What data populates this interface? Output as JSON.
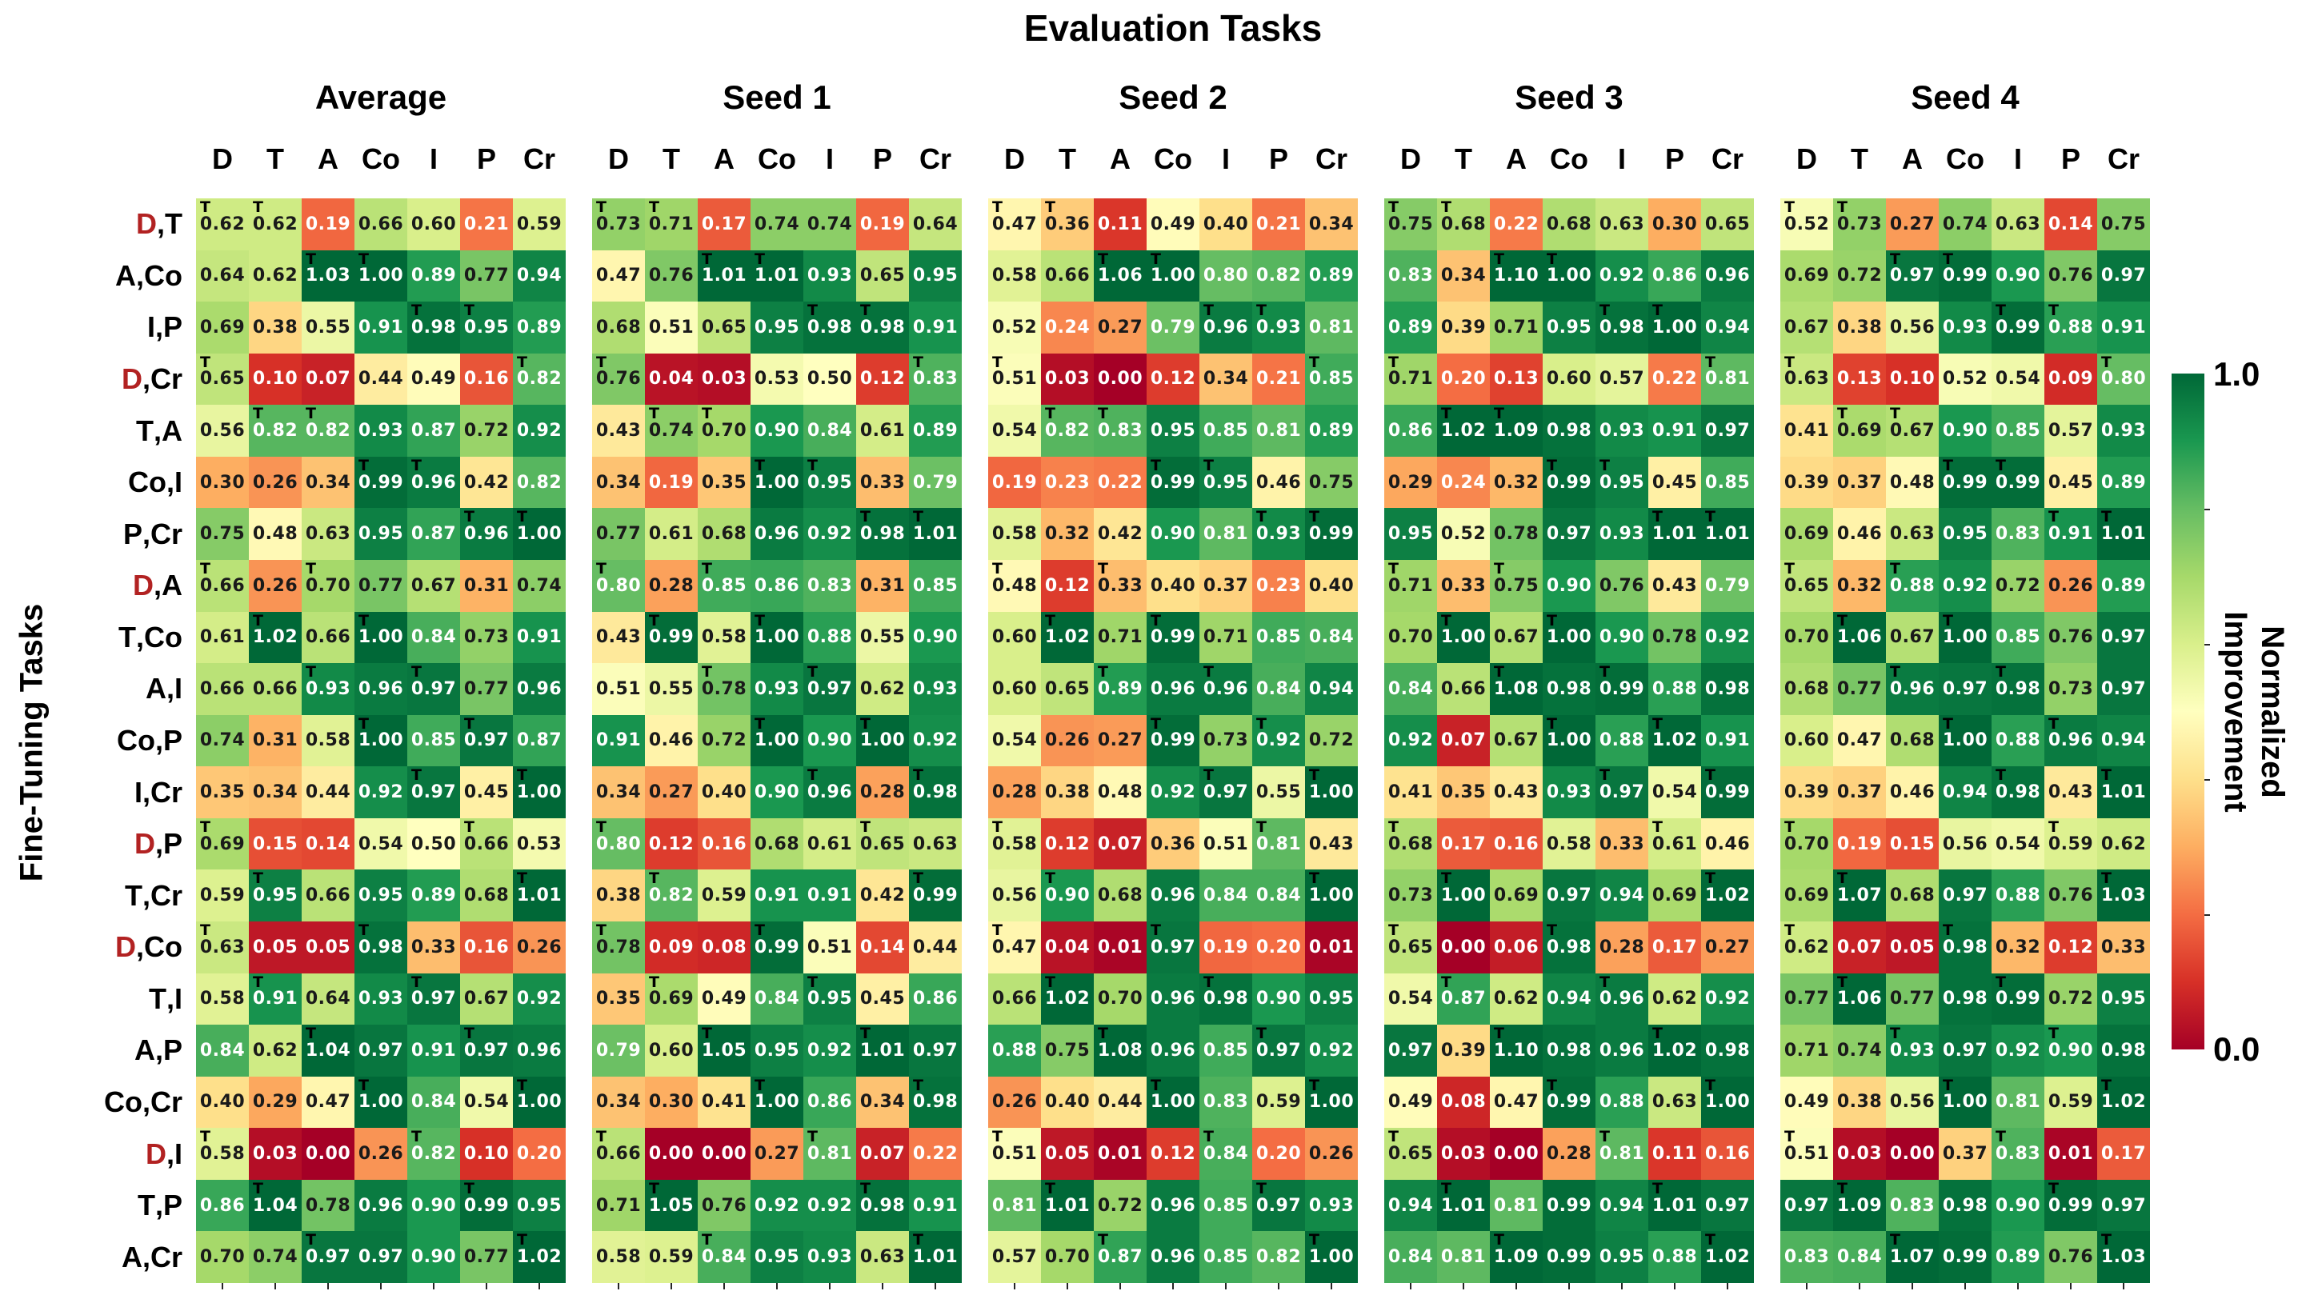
{
  "title": "Evaluation Tasks",
  "ylabel": "Fine-Tuning Tasks",
  "colorbar": {
    "top_label": "1.0",
    "bottom_label": "0.0",
    "label": "Normalized\nImprovement"
  },
  "highlight": {
    "letter": "D",
    "color": "#b22222"
  },
  "trained_marker": "T",
  "chart_data": {
    "type": "heatmap",
    "title": "Evaluation Tasks",
    "xlabel_implicit": "Evaluation Tasks",
    "ylabel": "Fine-Tuning Tasks",
    "colormap": "RdYlGn",
    "vmin": 0.0,
    "vmax": 1.0,
    "legend_note": "T marker printed in top-left of cells whose column matches one of the row's fine-tuning tasks",
    "x_categories": [
      "D",
      "T",
      "A",
      "Co",
      "I",
      "P",
      "Cr"
    ],
    "y_categories": [
      "D,T",
      "A,Co",
      "I,P",
      "D,Cr",
      "T,A",
      "Co,I",
      "P,Cr",
      "D,A",
      "T,Co",
      "A,I",
      "Co,P",
      "I,Cr",
      "D,P",
      "T,Cr",
      "D,Co",
      "T,I",
      "A,P",
      "Co,Cr",
      "D,I",
      "T,P",
      "A,Cr"
    ],
    "panels": [
      {
        "name": "Average",
        "values": [
          [
            0.62,
            0.62,
            0.19,
            0.66,
            0.6,
            0.21,
            0.59
          ],
          [
            0.64,
            0.62,
            1.03,
            1.0,
            0.89,
            0.77,
            0.94
          ],
          [
            0.69,
            0.38,
            0.55,
            0.91,
            0.98,
            0.95,
            0.89
          ],
          [
            0.65,
            0.1,
            0.07,
            0.44,
            0.49,
            0.16,
            0.82
          ],
          [
            0.56,
            0.82,
            0.82,
            0.93,
            0.87,
            0.72,
            0.92
          ],
          [
            0.3,
            0.26,
            0.34,
            0.99,
            0.96,
            0.42,
            0.82
          ],
          [
            0.75,
            0.48,
            0.63,
            0.95,
            0.87,
            0.96,
            1.0
          ],
          [
            0.66,
            0.26,
            0.7,
            0.77,
            0.67,
            0.31,
            0.74
          ],
          [
            0.61,
            1.02,
            0.66,
            1.0,
            0.84,
            0.73,
            0.91
          ],
          [
            0.66,
            0.66,
            0.93,
            0.96,
            0.97,
            0.77,
            0.96
          ],
          [
            0.74,
            0.31,
            0.58,
            1.0,
            0.85,
            0.97,
            0.87
          ],
          [
            0.35,
            0.34,
            0.44,
            0.92,
            0.97,
            0.45,
            1.0
          ],
          [
            0.69,
            0.15,
            0.14,
            0.54,
            0.5,
            0.66,
            0.53
          ],
          [
            0.59,
            0.95,
            0.66,
            0.95,
            0.89,
            0.68,
            1.01
          ],
          [
            0.63,
            0.05,
            0.05,
            0.98,
            0.33,
            0.16,
            0.26
          ],
          [
            0.58,
            0.91,
            0.64,
            0.93,
            0.97,
            0.67,
            0.92
          ],
          [
            0.84,
            0.62,
            1.04,
            0.97,
            0.91,
            0.97,
            0.96
          ],
          [
            0.4,
            0.29,
            0.47,
            1.0,
            0.84,
            0.54,
            1.0
          ],
          [
            0.58,
            0.03,
            0.0,
            0.26,
            0.82,
            0.1,
            0.2
          ],
          [
            0.86,
            1.04,
            0.78,
            0.96,
            0.9,
            0.99,
            0.95
          ],
          [
            0.7,
            0.74,
            0.97,
            0.97,
            0.9,
            0.77,
            1.02
          ]
        ]
      },
      {
        "name": "Seed 1",
        "values": [
          [
            0.73,
            0.71,
            0.17,
            0.74,
            0.74,
            0.19,
            0.64
          ],
          [
            0.47,
            0.76,
            1.01,
            1.01,
            0.93,
            0.65,
            0.95
          ],
          [
            0.68,
            0.51,
            0.65,
            0.95,
            0.98,
            0.98,
            0.91
          ],
          [
            0.76,
            0.04,
            0.03,
            0.53,
            0.5,
            0.12,
            0.83
          ],
          [
            0.43,
            0.74,
            0.7,
            0.9,
            0.84,
            0.61,
            0.89
          ],
          [
            0.34,
            0.19,
            0.35,
            1.0,
            0.95,
            0.33,
            0.79
          ],
          [
            0.77,
            0.61,
            0.68,
            0.96,
            0.92,
            0.98,
            1.01
          ],
          [
            0.8,
            0.28,
            0.85,
            0.86,
            0.83,
            0.31,
            0.85
          ],
          [
            0.43,
            0.99,
            0.58,
            1.0,
            0.88,
            0.55,
            0.9
          ],
          [
            0.51,
            0.55,
            0.78,
            0.93,
            0.97,
            0.62,
            0.93
          ],
          [
            0.91,
            0.46,
            0.72,
            1.0,
            0.9,
            1.0,
            0.92
          ],
          [
            0.34,
            0.27,
            0.4,
            0.9,
            0.96,
            0.28,
            0.98
          ],
          [
            0.8,
            0.12,
            0.16,
            0.68,
            0.61,
            0.65,
            0.63
          ],
          [
            0.38,
            0.82,
            0.59,
            0.91,
            0.91,
            0.42,
            0.99
          ],
          [
            0.78,
            0.09,
            0.08,
            0.99,
            0.51,
            0.14,
            0.44
          ],
          [
            0.35,
            0.69,
            0.49,
            0.84,
            0.95,
            0.45,
            0.86
          ],
          [
            0.79,
            0.6,
            1.05,
            0.95,
            0.92,
            1.01,
            0.97
          ],
          [
            0.34,
            0.3,
            0.41,
            1.0,
            0.86,
            0.34,
            0.98
          ],
          [
            0.66,
            0.0,
            0.0,
            0.27,
            0.81,
            0.07,
            0.22
          ],
          [
            0.71,
            1.05,
            0.76,
            0.92,
            0.92,
            0.98,
            0.91
          ],
          [
            0.58,
            0.59,
            0.84,
            0.95,
            0.93,
            0.63,
            1.01
          ]
        ]
      },
      {
        "name": "Seed 2",
        "values": [
          [
            0.47,
            0.36,
            0.11,
            0.49,
            0.4,
            0.21,
            0.34
          ],
          [
            0.58,
            0.66,
            1.06,
            1.0,
            0.8,
            0.82,
            0.89
          ],
          [
            0.52,
            0.24,
            0.27,
            0.79,
            0.96,
            0.93,
            0.81
          ],
          [
            0.51,
            0.03,
            0.0,
            0.12,
            0.34,
            0.21,
            0.85
          ],
          [
            0.54,
            0.82,
            0.83,
            0.95,
            0.85,
            0.81,
            0.89
          ],
          [
            0.19,
            0.23,
            0.22,
            0.99,
            0.95,
            0.46,
            0.75
          ],
          [
            0.58,
            0.32,
            0.42,
            0.9,
            0.81,
            0.93,
            0.99
          ],
          [
            0.48,
            0.12,
            0.33,
            0.4,
            0.37,
            0.23,
            0.4
          ],
          [
            0.6,
            1.02,
            0.71,
            0.99,
            0.71,
            0.85,
            0.84
          ],
          [
            0.6,
            0.65,
            0.89,
            0.96,
            0.96,
            0.84,
            0.94
          ],
          [
            0.54,
            0.26,
            0.27,
            0.99,
            0.73,
            0.92,
            0.72
          ],
          [
            0.28,
            0.38,
            0.48,
            0.92,
            0.97,
            0.55,
            1.0
          ],
          [
            0.58,
            0.12,
            0.07,
            0.36,
            0.51,
            0.81,
            0.43
          ],
          [
            0.56,
            0.9,
            0.68,
            0.96,
            0.84,
            0.84,
            1.0
          ],
          [
            0.47,
            0.04,
            0.01,
            0.97,
            0.19,
            0.2,
            0.01
          ],
          [
            0.66,
            1.02,
            0.7,
            0.96,
            0.98,
            0.9,
            0.95
          ],
          [
            0.88,
            0.75,
            1.08,
            0.96,
            0.85,
            0.97,
            0.92
          ],
          [
            0.26,
            0.4,
            0.44,
            1.0,
            0.83,
            0.59,
            1.0
          ],
          [
            0.51,
            0.05,
            0.01,
            0.12,
            0.84,
            0.2,
            0.26
          ],
          [
            0.81,
            1.01,
            0.72,
            0.96,
            0.85,
            0.97,
            0.93
          ],
          [
            0.57,
            0.7,
            0.87,
            0.96,
            0.85,
            0.82,
            1.0
          ]
        ]
      },
      {
        "name": "Seed 3",
        "values": [
          [
            0.75,
            0.68,
            0.22,
            0.68,
            0.63,
            0.3,
            0.65
          ],
          [
            0.83,
            0.34,
            1.1,
            1.0,
            0.92,
            0.86,
            0.96
          ],
          [
            0.89,
            0.39,
            0.71,
            0.95,
            0.98,
            1.0,
            0.94
          ],
          [
            0.71,
            0.2,
            0.13,
            0.6,
            0.57,
            0.22,
            0.81
          ],
          [
            0.86,
            1.02,
            1.09,
            0.98,
            0.93,
            0.91,
            0.97
          ],
          [
            0.29,
            0.24,
            0.32,
            0.99,
            0.95,
            0.45,
            0.85
          ],
          [
            0.95,
            0.52,
            0.78,
            0.97,
            0.93,
            1.01,
            1.01
          ],
          [
            0.71,
            0.33,
            0.75,
            0.9,
            0.76,
            0.43,
            0.79
          ],
          [
            0.7,
            1.0,
            0.67,
            1.0,
            0.9,
            0.78,
            0.92
          ],
          [
            0.84,
            0.66,
            1.08,
            0.98,
            0.99,
            0.88,
            0.98
          ],
          [
            0.92,
            0.07,
            0.67,
            1.0,
            0.88,
            1.02,
            0.91
          ],
          [
            0.41,
            0.35,
            0.43,
            0.93,
            0.97,
            0.54,
            0.99
          ],
          [
            0.68,
            0.17,
            0.16,
            0.58,
            0.33,
            0.61,
            0.46
          ],
          [
            0.73,
            1.0,
            0.69,
            0.97,
            0.94,
            0.69,
            1.02
          ],
          [
            0.65,
            0.0,
            0.06,
            0.98,
            0.28,
            0.17,
            0.27
          ],
          [
            0.54,
            0.87,
            0.62,
            0.94,
            0.96,
            0.62,
            0.92
          ],
          [
            0.97,
            0.39,
            1.1,
            0.98,
            0.96,
            1.02,
            0.98
          ],
          [
            0.49,
            0.08,
            0.47,
            0.99,
            0.88,
            0.63,
            1.0
          ],
          [
            0.65,
            0.03,
            0.0,
            0.28,
            0.81,
            0.11,
            0.16
          ],
          [
            0.94,
            1.01,
            0.81,
            0.99,
            0.94,
            1.01,
            0.97
          ],
          [
            0.84,
            0.81,
            1.09,
            0.99,
            0.95,
            0.88,
            1.02
          ]
        ]
      },
      {
        "name": "Seed 4",
        "values": [
          [
            0.52,
            0.73,
            0.27,
            0.74,
            0.63,
            0.14,
            0.75
          ],
          [
            0.69,
            0.72,
            0.97,
            0.99,
            0.9,
            0.76,
            0.97
          ],
          [
            0.67,
            0.38,
            0.56,
            0.93,
            0.99,
            0.88,
            0.91
          ],
          [
            0.63,
            0.13,
            0.1,
            0.52,
            0.54,
            0.09,
            0.8
          ],
          [
            0.41,
            0.69,
            0.67,
            0.9,
            0.85,
            0.57,
            0.93
          ],
          [
            0.39,
            0.37,
            0.48,
            0.99,
            0.99,
            0.45,
            0.89
          ],
          [
            0.69,
            0.46,
            0.63,
            0.95,
            0.83,
            0.91,
            1.01
          ],
          [
            0.65,
            0.32,
            0.88,
            0.92,
            0.72,
            0.26,
            0.89
          ],
          [
            0.7,
            1.06,
            0.67,
            1.0,
            0.85,
            0.76,
            0.97
          ],
          [
            0.68,
            0.77,
            0.96,
            0.97,
            0.98,
            0.73,
            0.97
          ],
          [
            0.6,
            0.47,
            0.68,
            1.0,
            0.88,
            0.96,
            0.94
          ],
          [
            0.39,
            0.37,
            0.46,
            0.94,
            0.98,
            0.43,
            1.01
          ],
          [
            0.7,
            0.19,
            0.15,
            0.56,
            0.54,
            0.59,
            0.62
          ],
          [
            0.69,
            1.07,
            0.68,
            0.97,
            0.88,
            0.76,
            1.03
          ],
          [
            0.62,
            0.07,
            0.05,
            0.98,
            0.32,
            0.12,
            0.33
          ],
          [
            0.77,
            1.06,
            0.77,
            0.98,
            0.99,
            0.72,
            0.95
          ],
          [
            0.71,
            0.74,
            0.93,
            0.97,
            0.92,
            0.9,
            0.98
          ],
          [
            0.49,
            0.38,
            0.56,
            1.0,
            0.81,
            0.59,
            1.02
          ],
          [
            0.51,
            0.03,
            0.0,
            0.37,
            0.83,
            0.01,
            0.17
          ],
          [
            0.97,
            1.09,
            0.83,
            0.98,
            0.9,
            0.99,
            0.97
          ],
          [
            0.83,
            0.84,
            1.07,
            0.99,
            0.89,
            0.76,
            1.03
          ]
        ]
      }
    ]
  }
}
